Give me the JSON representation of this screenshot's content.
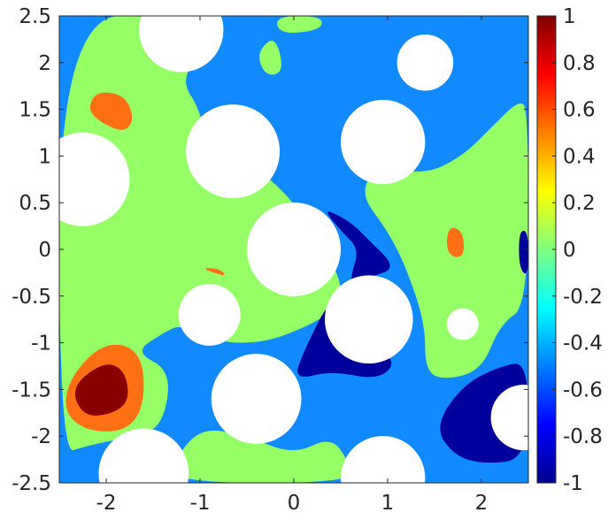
{
  "chart_data": {
    "type": "heatmap",
    "xlim": [
      -2.5,
      2.5
    ],
    "ylim": [
      -2.5,
      2.5
    ],
    "x_ticks": [
      "-2",
      "-1",
      "0",
      "1",
      "2"
    ],
    "y_ticks": [
      "2.5",
      "2",
      "1.5",
      "1",
      "0.5",
      "0",
      "-0.5",
      "-1",
      "-1.5",
      "-2",
      "-2.5"
    ],
    "colorbar": {
      "range": [
        -1,
        1
      ],
      "ticks": [
        "1",
        "0.8",
        "0.6",
        "0.4",
        "0.2",
        "0",
        "-0.2",
        "-0.4",
        "-0.6",
        "-0.8",
        "-1"
      ],
      "colormap": "jet"
    },
    "background_level": -0.55,
    "regions": [
      {
        "level": 0.0,
        "points": [
          [
            -2.5,
            2.5
          ],
          [
            -1.2,
            2.5
          ],
          [
            -1.0,
            2.1
          ],
          [
            -1.2,
            1.8
          ],
          [
            -1.0,
            1.5
          ],
          [
            -0.9,
            1.0
          ],
          [
            -0.5,
            0.9
          ],
          [
            -0.3,
            0.8
          ],
          [
            0.0,
            0.5
          ],
          [
            0.2,
            0.2
          ],
          [
            0.5,
            -0.3
          ],
          [
            0.5,
            -0.6
          ],
          [
            0.2,
            -0.8
          ],
          [
            -0.3,
            -1.0
          ],
          [
            -0.8,
            -1.0
          ],
          [
            -1.2,
            -0.8
          ],
          [
            -1.4,
            -0.9
          ],
          [
            -1.7,
            -1.1
          ],
          [
            -1.3,
            -1.3
          ],
          [
            -1.4,
            -1.9
          ],
          [
            -1.7,
            -2.0
          ],
          [
            -2.2,
            -2.1
          ],
          [
            -2.5,
            -2.2
          ]
        ]
      },
      {
        "level": 0.0,
        "points": [
          [
            0.9,
            0.9
          ],
          [
            1.4,
            0.8
          ],
          [
            1.8,
            1.0
          ],
          [
            2.1,
            1.3
          ],
          [
            2.4,
            1.6
          ],
          [
            2.5,
            1.5
          ],
          [
            2.5,
            -0.6
          ],
          [
            2.2,
            -0.8
          ],
          [
            2.0,
            -1.3
          ],
          [
            1.6,
            -1.4
          ],
          [
            1.4,
            -1.3
          ],
          [
            1.4,
            -0.8
          ],
          [
            1.2,
            -0.2
          ],
          [
            1.0,
            0.2
          ],
          [
            0.7,
            0.6
          ]
        ]
      },
      {
        "level": 0.0,
        "points": [
          [
            -1.0,
            -1.9
          ],
          [
            -0.5,
            -2.0
          ],
          [
            0.0,
            -2.2
          ],
          [
            0.4,
            -2.0
          ],
          [
            0.6,
            -2.3
          ],
          [
            0.6,
            -2.5
          ],
          [
            -1.2,
            -2.5
          ],
          [
            -1.3,
            -2.3
          ]
        ]
      },
      {
        "level": 0.0,
        "points": [
          [
            -0.2,
            2.5
          ],
          [
            0.3,
            2.5
          ],
          [
            0.3,
            2.35
          ],
          [
            -0.15,
            2.3
          ]
        ]
      },
      {
        "level": 0.0,
        "points": [
          [
            -0.4,
            2.1
          ],
          [
            -0.2,
            2.3
          ],
          [
            -0.1,
            1.9
          ],
          [
            -0.3,
            1.85
          ]
        ]
      },
      {
        "level": -0.9,
        "points": [
          [
            0.3,
            0.45
          ],
          [
            0.6,
            0.3
          ],
          [
            0.8,
            0.1
          ],
          [
            1.1,
            -0.2
          ],
          [
            0.8,
            -0.3
          ],
          [
            0.4,
            -0.5
          ],
          [
            0.1,
            -1.1
          ],
          [
            0.0,
            -1.4
          ],
          [
            0.4,
            -1.3
          ],
          [
            0.9,
            -1.4
          ],
          [
            1.1,
            -1.2
          ],
          [
            0.8,
            -1.0
          ],
          [
            0.6,
            -0.7
          ],
          [
            0.6,
            -0.3
          ],
          [
            0.7,
            0.0
          ],
          [
            0.5,
            0.2
          ]
        ]
      },
      {
        "level": -0.9,
        "points": [
          [
            1.5,
            -1.9
          ],
          [
            1.8,
            -1.45
          ],
          [
            2.2,
            -1.25
          ],
          [
            2.5,
            -1.2
          ],
          [
            2.5,
            -2.25
          ],
          [
            2.0,
            -2.3
          ],
          [
            1.7,
            -2.2
          ]
        ]
      },
      {
        "level": -0.9,
        "points": [
          [
            2.4,
            0.2
          ],
          [
            2.5,
            0.2
          ],
          [
            2.5,
            -0.3
          ],
          [
            2.4,
            -0.2
          ]
        ]
      },
      {
        "level": -0.9,
        "points": [
          [
            0.85,
            -2.1
          ],
          [
            1.2,
            -2.2
          ],
          [
            1.1,
            -2.35
          ],
          [
            0.8,
            -2.35
          ]
        ]
      },
      {
        "level": -0.9,
        "points": [
          [
            -1.3,
            -2.1
          ],
          [
            -1.5,
            -2.05
          ],
          [
            -1.6,
            -2.15
          ],
          [
            -1.4,
            -2.2
          ]
        ]
      },
      {
        "level": 0.5,
        "points": [
          [
            -2.1,
            1.7
          ],
          [
            -1.8,
            1.65
          ],
          [
            -1.7,
            1.4
          ],
          [
            -1.8,
            1.25
          ],
          [
            -2.05,
            1.35
          ],
          [
            -2.2,
            1.5
          ]
        ]
      },
      {
        "level": 0.5,
        "points": [
          [
            1.65,
            0.25
          ],
          [
            1.8,
            0.2
          ],
          [
            1.82,
            -0.05
          ],
          [
            1.72,
            -0.1
          ],
          [
            1.62,
            0.0
          ]
        ]
      },
      {
        "level": 0.5,
        "points": [
          [
            -1.0,
            -0.2
          ],
          [
            -0.8,
            -0.2
          ],
          [
            -0.7,
            -0.3
          ],
          -0.95
        ]
      },
      {
        "level": 0.5,
        "points": [
          [
            -2.4,
            -1.4
          ],
          [
            -2.1,
            -1.05
          ],
          [
            -1.8,
            -1.0
          ],
          [
            -1.6,
            -1.2
          ],
          [
            -1.6,
            -1.7
          ],
          [
            -1.8,
            -1.95
          ],
          [
            -2.2,
            -1.95
          ],
          [
            -2.45,
            -1.75
          ]
        ]
      },
      {
        "level": 1.0,
        "points": [
          [
            -2.3,
            -1.4
          ],
          [
            -2.0,
            -1.2
          ],
          [
            -1.8,
            -1.3
          ],
          [
            -1.75,
            -1.6
          ],
          [
            -1.9,
            -1.75
          ],
          [
            -2.2,
            -1.8
          ],
          [
            -2.35,
            -1.6
          ]
        ]
      }
    ],
    "holes": [
      {
        "x": -1.2,
        "y": 2.35,
        "r": 0.45
      },
      {
        "x": -2.25,
        "y": 0.75,
        "r": 0.5
      },
      {
        "x": -0.65,
        "y": 1.05,
        "r": 0.5
      },
      {
        "x": 0.0,
        "y": 0.0,
        "r": 0.5
      },
      {
        "x": 0.95,
        "y": 1.15,
        "r": 0.45
      },
      {
        "x": 1.4,
        "y": 2.0,
        "r": 0.3
      },
      {
        "x": -0.9,
        "y": -0.7,
        "r": 0.33
      },
      {
        "x": 0.8,
        "y": -0.75,
        "r": 0.47
      },
      {
        "x": 1.8,
        "y": -0.8,
        "r": 0.17
      },
      {
        "x": -0.4,
        "y": -1.6,
        "r": 0.48
      },
      {
        "x": 2.45,
        "y": -1.8,
        "r": 0.35
      },
      {
        "x": -1.6,
        "y": -2.4,
        "r": 0.48
      },
      {
        "x": 0.95,
        "y": -2.45,
        "r": 0.45
      }
    ]
  }
}
